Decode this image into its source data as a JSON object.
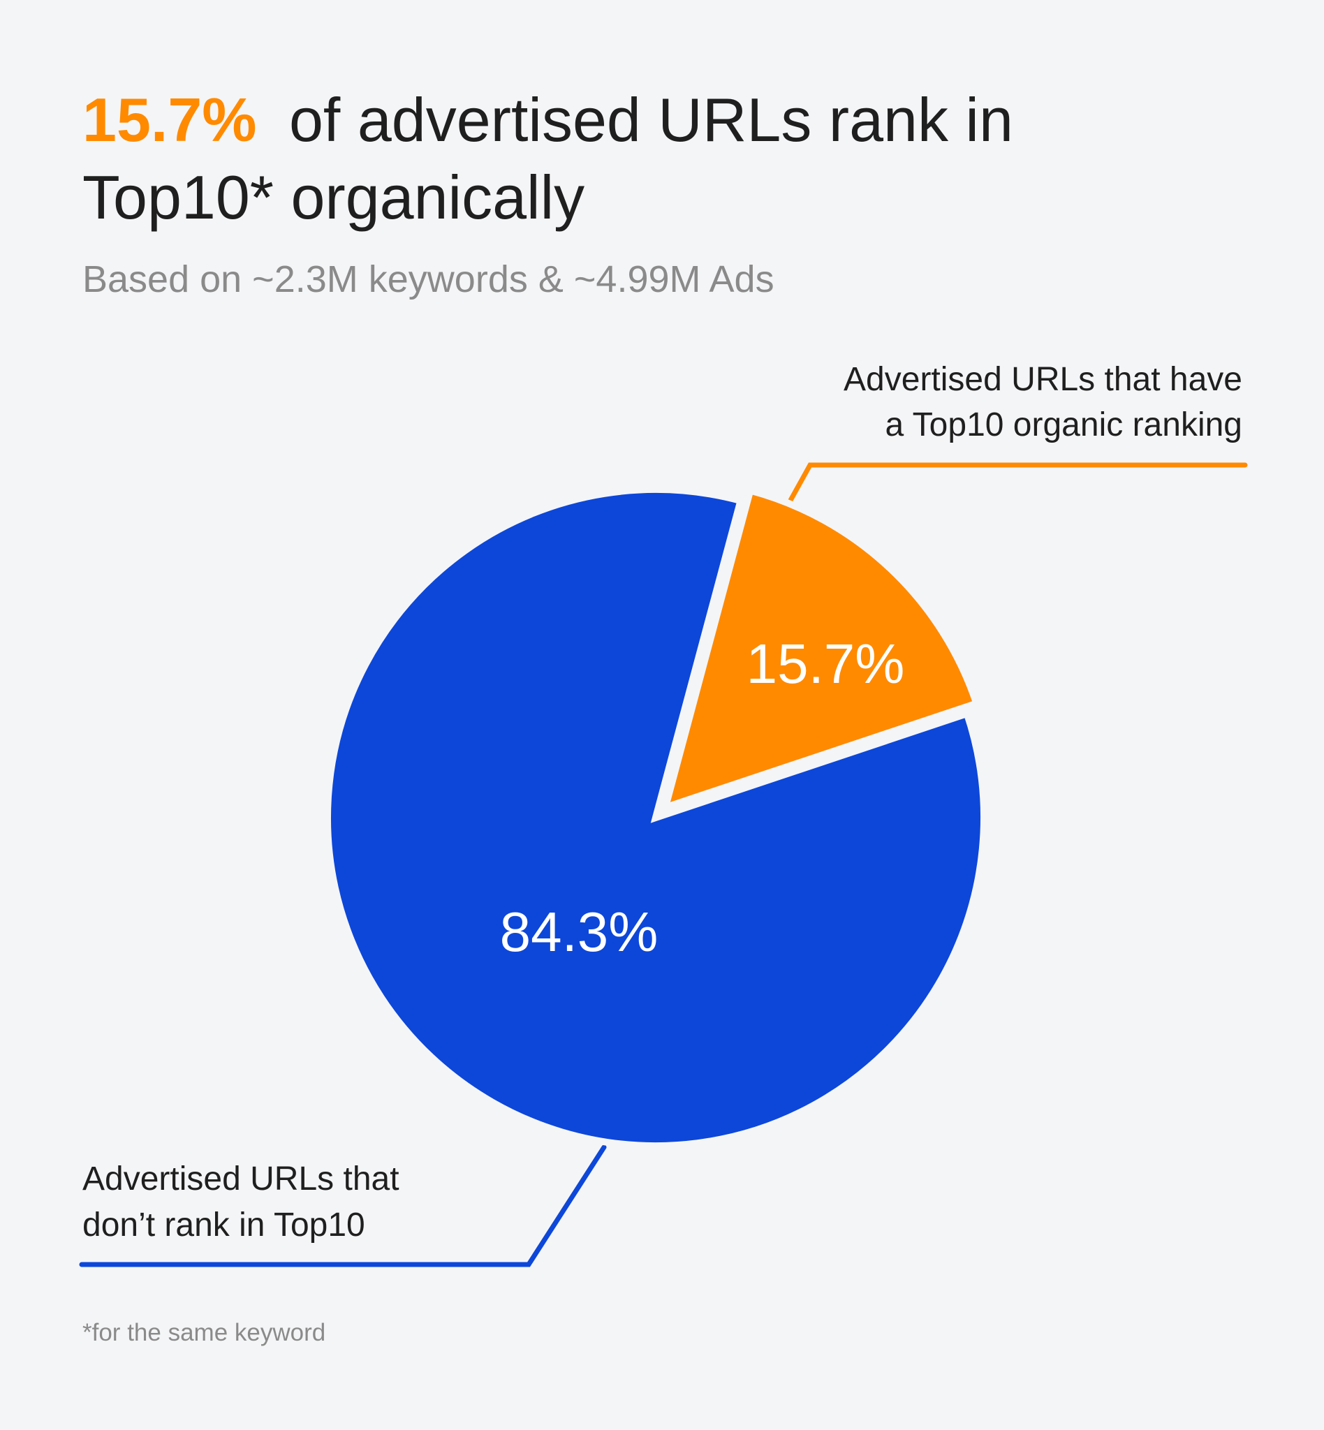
{
  "chart_data": {
    "type": "pie",
    "title": {
      "highlight": "15.7%",
      "text": "of advertised URLs rank in\nTop10* organically"
    },
    "subtitle": "Based on ~2.3M keywords & ~4.99M Ads",
    "categories": [
      "Advertised URLs that have\na Top10 organic ranking",
      "Advertised URLs that\ndon’t rank in Top10"
    ],
    "values": [
      15.7,
      84.3
    ],
    "value_labels": [
      "15.7%",
      "84.3%"
    ],
    "colors": [
      "#ff8a00",
      "#0d47d9"
    ],
    "start_angle": 15,
    "footnote": "*for the same keyword"
  }
}
